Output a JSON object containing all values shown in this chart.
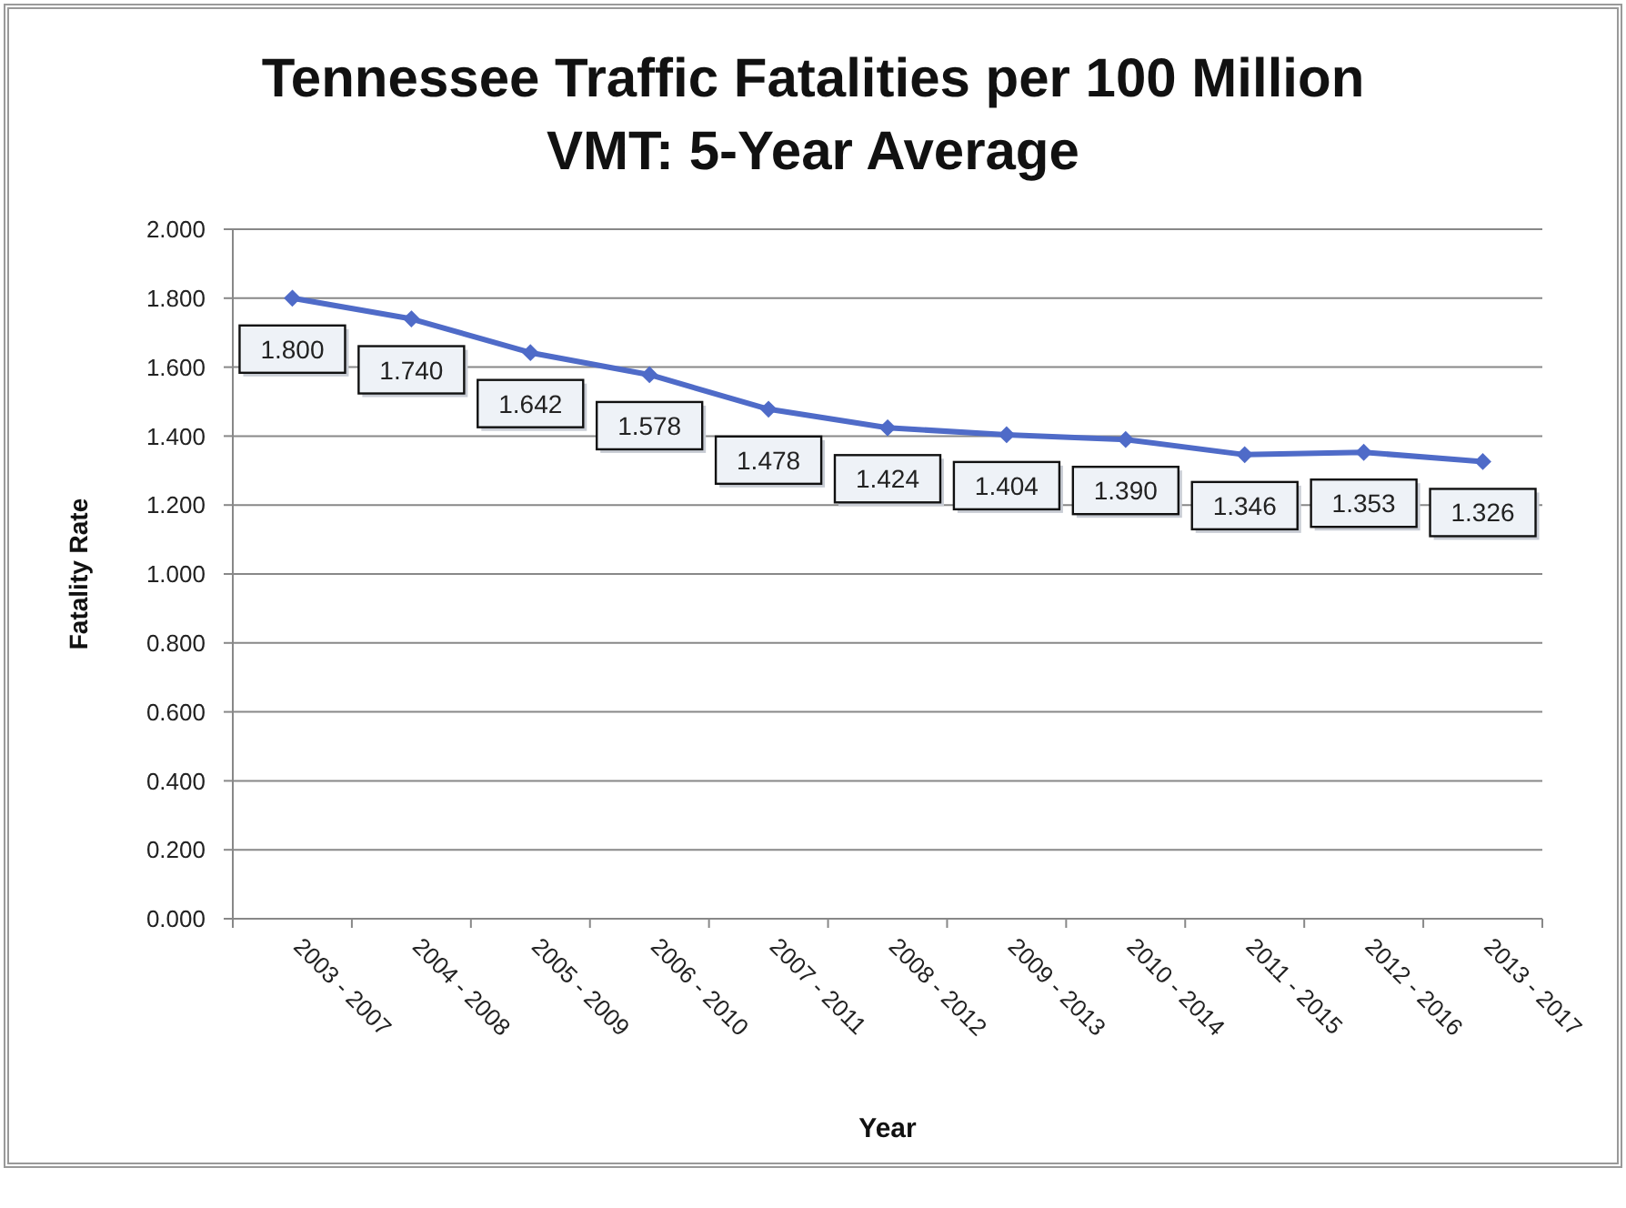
{
  "chart_data": {
    "type": "line",
    "title": "Tennessee Traffic Fatalities per 100 Million VMT: 5-Year Average",
    "xlabel": "Year",
    "ylabel": "Fatality Rate",
    "categories": [
      "2003 - 2007",
      "2004 - 2008",
      "2005 - 2009",
      "2006 - 2010",
      "2007 - 2011",
      "2008 - 2012",
      "2009 - 2013",
      "2010 - 2014",
      "2011 - 2015",
      "2012 - 2016",
      "2013 - 2017"
    ],
    "series": [
      {
        "color": "#4f6bc8",
        "values": [
          1.8,
          1.74,
          1.642,
          1.578,
          1.478,
          1.424,
          1.404,
          1.39,
          1.346,
          1.353,
          1.326
        ],
        "value_labels": [
          "1.800",
          "1.740",
          "1.642",
          "1.578",
          "1.478",
          "1.424",
          "1.404",
          "1.390",
          "1.346",
          "1.353",
          "1.326"
        ]
      }
    ],
    "ylim": [
      0,
      2
    ],
    "yticks": [
      {
        "value": 0,
        "label": "0.000"
      },
      {
        "value": 0.2,
        "label": "0.200"
      },
      {
        "value": 0.4,
        "label": "0.400"
      },
      {
        "value": 0.6,
        "label": "0.600"
      },
      {
        "value": 0.8,
        "label": "0.800"
      },
      {
        "value": 1,
        "label": "1.000"
      },
      {
        "value": 1.2,
        "label": "1.200"
      },
      {
        "value": 1.4,
        "label": "1.400"
      },
      {
        "value": 1.6,
        "label": "1.600"
      },
      {
        "value": 1.8,
        "label": "1.800"
      },
      {
        "value": 2,
        "label": "2.000"
      }
    ],
    "grid": "y",
    "marker": "diamond",
    "line_style": "solid"
  }
}
